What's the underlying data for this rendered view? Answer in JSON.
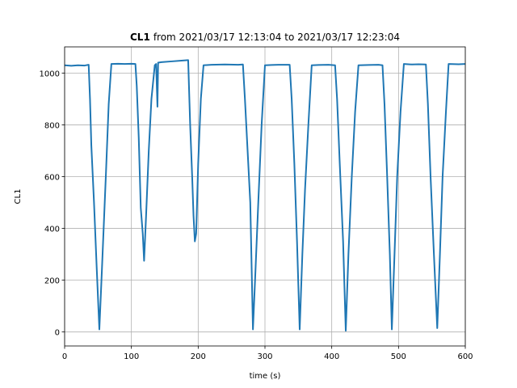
{
  "chart_data": {
    "type": "line",
    "title": {
      "bold": "CL1",
      "text": "from 2021/03/17 12:13:04 to 2021/03/17 12:23:04"
    },
    "xlabel": "time (s)",
    "ylabel": "CL1",
    "x": [
      0,
      10,
      20,
      30,
      36,
      38,
      40,
      44,
      48,
      52,
      56,
      62,
      66,
      70,
      80,
      90,
      100,
      106,
      108,
      111,
      114,
      117,
      119,
      122,
      126,
      130,
      135,
      137,
      139,
      140,
      145,
      160,
      175,
      185,
      188,
      191,
      193,
      195,
      197,
      200,
      204,
      208,
      220,
      240,
      260,
      267,
      270,
      274,
      278,
      282,
      286,
      290,
      295,
      300,
      310,
      320,
      337,
      340,
      344,
      348,
      352,
      356,
      360,
      365,
      370,
      380,
      395,
      405,
      408,
      412,
      417,
      421,
      425,
      430,
      435,
      440,
      455,
      470,
      476,
      479,
      483,
      487,
      490,
      494,
      498,
      503,
      508,
      520,
      530,
      541,
      544,
      548,
      553,
      558,
      562,
      566,
      571,
      575,
      590,
      600
    ],
    "values": [
      1030,
      1028,
      1030,
      1029,
      1032,
      900,
      720,
      500,
      250,
      10,
      250,
      620,
      880,
      1035,
      1036,
      1035,
      1036,
      1035,
      950,
      750,
      480,
      380,
      275,
      450,
      700,
      900,
      1030,
      1035,
      870,
      1040,
      1042,
      1045,
      1048,
      1050,
      800,
      600,
      450,
      350,
      380,
      650,
      900,
      1030,
      1032,
      1033,
      1032,
      1033,
      900,
      700,
      500,
      10,
      250,
      500,
      800,
      1030,
      1031,
      1032,
      1032,
      900,
      650,
      350,
      10,
      300,
      550,
      800,
      1030,
      1031,
      1032,
      1030,
      900,
      650,
      350,
      5,
      300,
      600,
      850,
      1030,
      1031,
      1032,
      1030,
      880,
      600,
      300,
      10,
      300,
      600,
      850,
      1035,
      1033,
      1034,
      1033,
      880,
      600,
      300,
      15,
      300,
      600,
      850,
      1035,
      1034,
      1035
    ],
    "color": "#1f77b4",
    "xlim": [
      0,
      600
    ],
    "ylim": [
      -54,
      1101
    ],
    "xticks": [
      0,
      100,
      200,
      300,
      400,
      500,
      600
    ],
    "yticks": [
      0,
      200,
      400,
      600,
      800,
      1000
    ],
    "grid": true
  }
}
